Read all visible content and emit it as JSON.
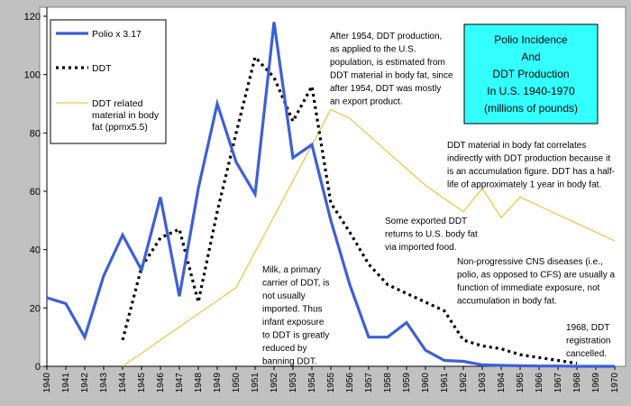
{
  "chart_data": {
    "type": "line",
    "title": "Polio Incidence\nAnd\nDDT Production\nIn U.S. 1940-1970\n(millions of pounds)",
    "xlabel": "",
    "ylabel": "",
    "x": [
      1940,
      1941,
      1942,
      1943,
      1944,
      1945,
      1946,
      1947,
      1948,
      1949,
      1950,
      1951,
      1952,
      1953,
      1954,
      1955,
      1956,
      1957,
      1958,
      1959,
      1960,
      1961,
      1962,
      1963,
      1964,
      1965,
      1966,
      1967,
      1968,
      1969,
      1970
    ],
    "xlim": [
      1940,
      1970
    ],
    "ylim": [
      0,
      120
    ],
    "y_ticks": [
      0,
      20,
      40,
      60,
      80,
      100,
      120
    ],
    "grid": false,
    "legend_position": "top-left",
    "series": [
      {
        "name": "Polio x 3.17",
        "style": "solid-thick",
        "color": "#3d5fd8",
        "values": [
          23.5,
          21.5,
          10,
          31,
          45,
          33,
          58,
          24,
          61,
          90,
          70,
          59,
          118,
          71.5,
          76,
          50,
          28,
          10,
          10,
          15,
          5.5,
          2,
          1.7,
          0.5,
          0.3,
          0.2,
          0.1,
          0.1,
          0,
          0,
          0
        ]
      },
      {
        "name": "DDT",
        "style": "dotted",
        "color": "#000000",
        "x": [
          1944,
          1945,
          1946,
          1947,
          1948,
          1949,
          1950,
          1951,
          1952,
          1953,
          1954,
          1955,
          1956,
          1957,
          1958,
          1959,
          1960,
          1961,
          1962,
          1963,
          1964,
          1965,
          1966,
          1967,
          1968
        ],
        "values": [
          9,
          34,
          44,
          47,
          22,
          53,
          80,
          106,
          99,
          84,
          96,
          56,
          46,
          35,
          28,
          25,
          22,
          19,
          9,
          7,
          6,
          4,
          3,
          2,
          1
        ]
      },
      {
        "name": "DDT related material in body fat (ppmx5.5)",
        "style": "thin",
        "color": "#f0c040",
        "x": [
          1944,
          1950,
          1955,
          1956,
          1960,
          1962,
          1963,
          1964,
          1965,
          1970
        ],
        "values": [
          0,
          27,
          88,
          85,
          62,
          53,
          61,
          51,
          58,
          43
        ]
      }
    ],
    "annotations": [
      {
        "id": "after-1954",
        "lines": [
          "After 1954, DDT production,",
          "as applied to the U.S.",
          "population, is estimated from",
          "DDT material in body fat, since",
          "after 1954, DDT was mostly",
          "an export product."
        ]
      },
      {
        "id": "body-fat-correlates",
        "lines": [
          "DDT material in body fat correlates",
          "indirectly with DDT production because it",
          "is an accumulation figure. DDT has a half-",
          "life of approximately 1 year in body fat."
        ]
      },
      {
        "id": "exported-returns",
        "lines": [
          "Some exported DDT",
          "returns to U.S. body fat",
          "via imported food."
        ]
      },
      {
        "id": "non-progressive",
        "lines": [
          "Non-progressive CNS diseases (i.e.,",
          "polio, as opposed to CFS) are usually a",
          "function of immediate exposure, not",
          "accumulation in body fat."
        ]
      },
      {
        "id": "milk",
        "lines": [
          "Milk, a primary",
          "carrier of DDT, is",
          "not usually",
          "imported. Thus",
          "infant exposure",
          "to DDT is greatly",
          "reduced by",
          "banning DDT."
        ]
      },
      {
        "id": "1968-registration",
        "lines": [
          "1968, DDT",
          "registration",
          "cancelled."
        ]
      }
    ]
  }
}
